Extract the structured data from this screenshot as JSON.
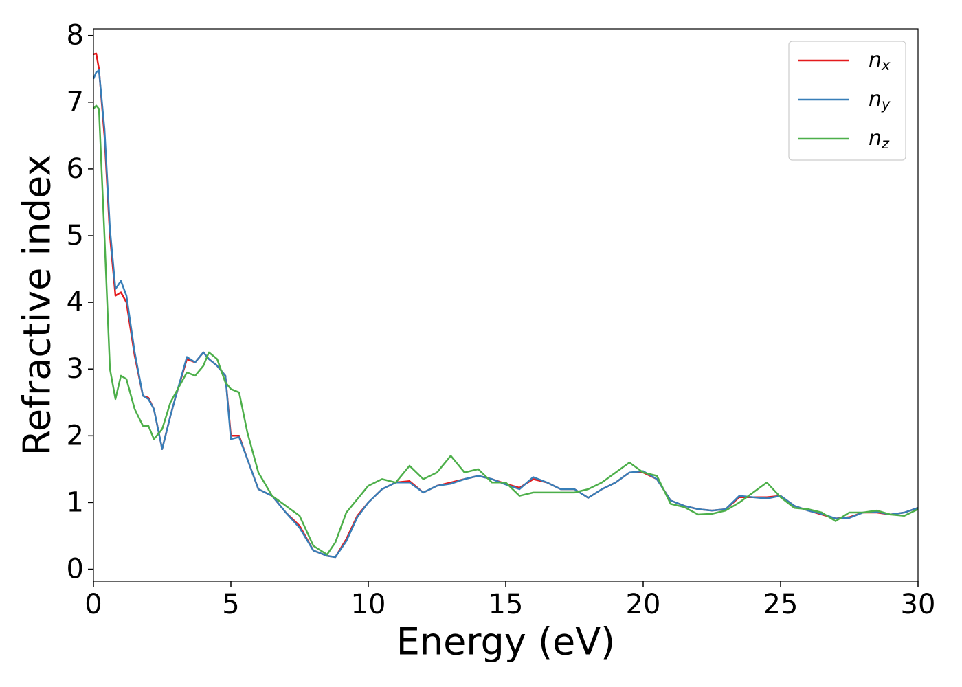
{
  "chart_data": {
    "type": "line",
    "xlabel": "Energy (eV)",
    "ylabel": "Refractive index",
    "xlim": [
      0,
      30
    ],
    "ylim": [
      -0.18,
      8.1
    ],
    "xticks": [
      0,
      5,
      10,
      15,
      20,
      25,
      30
    ],
    "yticks": [
      0,
      1,
      2,
      3,
      4,
      5,
      6,
      7,
      8
    ],
    "legend": "upper right",
    "grid": false,
    "x": [
      0,
      0.1,
      0.2,
      0.4,
      0.6,
      0.8,
      1.0,
      1.2,
      1.5,
      1.8,
      2.0,
      2.2,
      2.5,
      2.8,
      3.0,
      3.4,
      3.7,
      4.0,
      4.2,
      4.5,
      4.8,
      5.0,
      5.3,
      5.6,
      6.0,
      6.5,
      7.0,
      7.5,
      8.0,
      8.5,
      8.8,
      9.2,
      9.6,
      10,
      10.5,
      11,
      11.5,
      12,
      12.5,
      13,
      13.5,
      14,
      14.5,
      15,
      15.5,
      16,
      16.5,
      17,
      17.5,
      18,
      18.5,
      19,
      19.5,
      20,
      20.5,
      21,
      21.5,
      22,
      22.5,
      23,
      23.5,
      24,
      24.5,
      25,
      25.5,
      26,
      26.5,
      27,
      27.5,
      28,
      28.5,
      29,
      29.5,
      30
    ],
    "series": [
      {
        "name": "nx",
        "color": "#e41a1c",
        "values": [
          7.72,
          7.73,
          7.5,
          6.5,
          5.0,
          4.1,
          4.15,
          4.0,
          3.2,
          2.6,
          2.57,
          2.4,
          1.8,
          2.3,
          2.6,
          3.15,
          3.1,
          3.25,
          3.15,
          3.05,
          2.9,
          2.0,
          2.0,
          1.65,
          1.2,
          1.1,
          0.85,
          0.65,
          0.28,
          0.2,
          0.18,
          0.45,
          0.8,
          1.0,
          1.2,
          1.3,
          1.32,
          1.15,
          1.25,
          1.3,
          1.35,
          1.4,
          1.35,
          1.28,
          1.22,
          1.35,
          1.3,
          1.2,
          1.2,
          1.07,
          1.2,
          1.3,
          1.45,
          1.45,
          1.35,
          1.03,
          0.95,
          0.9,
          0.88,
          0.9,
          1.08,
          1.08,
          1.08,
          1.1,
          0.95,
          0.88,
          0.82,
          0.76,
          0.78,
          0.85,
          0.85,
          0.82,
          0.85,
          0.92
        ]
      },
      {
        "name": "ny",
        "color": "#377eb8",
        "values": [
          7.35,
          7.45,
          7.48,
          6.6,
          5.1,
          4.2,
          4.32,
          4.1,
          3.25,
          2.6,
          2.55,
          2.4,
          1.8,
          2.3,
          2.6,
          3.18,
          3.1,
          3.25,
          3.15,
          3.05,
          2.9,
          1.95,
          1.98,
          1.65,
          1.2,
          1.1,
          0.85,
          0.62,
          0.28,
          0.2,
          0.18,
          0.42,
          0.78,
          1.0,
          1.2,
          1.3,
          1.3,
          1.15,
          1.25,
          1.28,
          1.35,
          1.4,
          1.35,
          1.27,
          1.2,
          1.38,
          1.3,
          1.2,
          1.2,
          1.07,
          1.2,
          1.3,
          1.45,
          1.47,
          1.35,
          1.03,
          0.95,
          0.9,
          0.88,
          0.9,
          1.1,
          1.08,
          1.06,
          1.1,
          0.95,
          0.88,
          0.83,
          0.76,
          0.77,
          0.85,
          0.86,
          0.82,
          0.85,
          0.92
        ]
      },
      {
        "name": "nz",
        "color": "#4daf4a",
        "values": [
          6.9,
          6.95,
          6.9,
          5.0,
          3.0,
          2.55,
          2.9,
          2.85,
          2.4,
          2.15,
          2.15,
          1.95,
          2.1,
          2.5,
          2.65,
          2.95,
          2.9,
          3.05,
          3.25,
          3.15,
          2.8,
          2.7,
          2.65,
          2.05,
          1.45,
          1.1,
          0.95,
          0.8,
          0.35,
          0.22,
          0.4,
          0.85,
          1.05,
          1.25,
          1.35,
          1.3,
          1.55,
          1.35,
          1.45,
          1.7,
          1.45,
          1.5,
          1.3,
          1.3,
          1.1,
          1.15,
          1.15,
          1.15,
          1.15,
          1.2,
          1.3,
          1.45,
          1.6,
          1.45,
          1.4,
          0.98,
          0.93,
          0.82,
          0.83,
          0.88,
          1.0,
          1.15,
          1.3,
          1.08,
          0.92,
          0.9,
          0.85,
          0.72,
          0.85,
          0.85,
          0.88,
          0.82,
          0.8,
          0.9
        ]
      }
    ]
  }
}
